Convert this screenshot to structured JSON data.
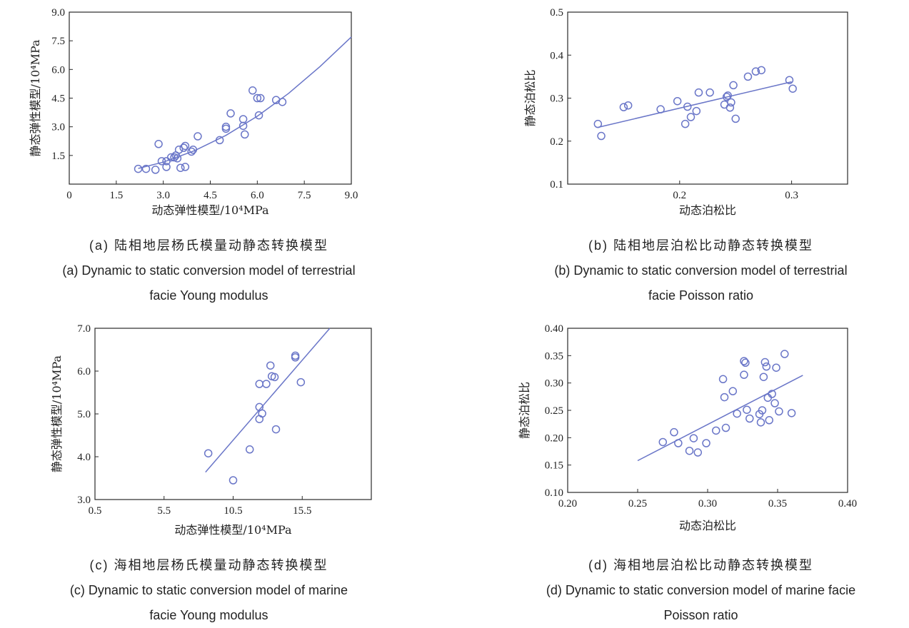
{
  "colors": {
    "marker": "#6a76c8",
    "axis": "#2a2a2a",
    "fit": "#6a76c8"
  },
  "chart_data": [
    {
      "type": "scatter",
      "caption_cn": "(a) 陆相地层杨氏模量动静态转换模型",
      "caption_en": "(a) Dynamic to static conversion model of terrestrial",
      "caption_en2": "facie Young modulus",
      "xlabel": "动态弹性模型/10⁴MPa",
      "ylabel": "静态弹性模型/10⁴MPa",
      "xlim": [
        0,
        9
      ],
      "ylim": [
        0,
        9
      ],
      "xticks": [
        "0",
        "1.5",
        "3.0",
        "4.5",
        "6.0",
        "7.5",
        "9.0"
      ],
      "yticks": [
        "",
        "1.5",
        "3.0",
        "4.5",
        "6.0",
        "7.5",
        "9.0"
      ],
      "points": [
        [
          2.2,
          0.8
        ],
        [
          2.45,
          0.8
        ],
        [
          2.75,
          0.75
        ],
        [
          2.85,
          2.1
        ],
        [
          2.95,
          1.2
        ],
        [
          3.1,
          0.9
        ],
        [
          3.1,
          1.2
        ],
        [
          3.25,
          1.4
        ],
        [
          3.35,
          1.4
        ],
        [
          3.4,
          1.5
        ],
        [
          3.45,
          1.35
        ],
        [
          3.5,
          1.8
        ],
        [
          3.55,
          0.85
        ],
        [
          3.65,
          1.9
        ],
        [
          3.7,
          2.0
        ],
        [
          3.7,
          0.9
        ],
        [
          3.9,
          1.7
        ],
        [
          3.95,
          1.8
        ],
        [
          4.1,
          2.5
        ],
        [
          4.8,
          2.3
        ],
        [
          5.0,
          2.9
        ],
        [
          5.0,
          3.0
        ],
        [
          5.15,
          3.7
        ],
        [
          5.55,
          3.4
        ],
        [
          5.55,
          3.05
        ],
        [
          5.6,
          2.6
        ],
        [
          5.85,
          4.9
        ],
        [
          6.0,
          4.5
        ],
        [
          6.05,
          3.6
        ],
        [
          6.1,
          4.5
        ],
        [
          6.6,
          4.4
        ],
        [
          6.8,
          4.3
        ]
      ],
      "fit": {
        "kind": "curve",
        "x": [
          2.2,
          3,
          4,
          5,
          6,
          7,
          8,
          9
        ],
        "y": [
          0.82,
          1.15,
          1.75,
          2.55,
          3.55,
          4.75,
          6.15,
          7.7
        ]
      }
    },
    {
      "type": "scatter",
      "caption_cn": "(b) 陆相地层泊松比动静态转换模型",
      "caption_en": "(b) Dynamic to static conversion model of terrestrial",
      "caption_en2": "facie Poisson ratio",
      "xlabel": "动态泊松比",
      "ylabel": "静态泊松比",
      "xlim": [
        0.1,
        0.35
      ],
      "ylim": [
        0.1,
        0.5
      ],
      "xticks": [
        "0.2",
        "0.3"
      ],
      "xtick_values": [
        0.2,
        0.3
      ],
      "yticks": [
        "0.1",
        "0.2",
        "0.3",
        "0.4",
        "0.5"
      ],
      "points": [
        [
          0.127,
          0.24
        ],
        [
          0.13,
          0.212
        ],
        [
          0.15,
          0.279
        ],
        [
          0.154,
          0.283
        ],
        [
          0.183,
          0.274
        ],
        [
          0.198,
          0.293
        ],
        [
          0.205,
          0.24
        ],
        [
          0.207,
          0.28
        ],
        [
          0.21,
          0.256
        ],
        [
          0.215,
          0.27
        ],
        [
          0.217,
          0.313
        ],
        [
          0.227,
          0.313
        ],
        [
          0.24,
          0.285
        ],
        [
          0.242,
          0.303
        ],
        [
          0.243,
          0.306
        ],
        [
          0.245,
          0.278
        ],
        [
          0.246,
          0.29
        ],
        [
          0.248,
          0.33
        ],
        [
          0.25,
          0.252
        ],
        [
          0.261,
          0.35
        ],
        [
          0.268,
          0.362
        ],
        [
          0.273,
          0.365
        ],
        [
          0.298,
          0.342
        ],
        [
          0.301,
          0.322
        ]
      ],
      "fit": {
        "kind": "line",
        "x": [
          0.127,
          0.3
        ],
        "y": [
          0.232,
          0.338
        ]
      }
    },
    {
      "type": "scatter",
      "caption_cn": "(c) 海相地层杨氏模量动静态转换模型",
      "caption_en": "(c) Dynamic to static conversion model of marine",
      "caption_en2": "facie Young modulus",
      "xlabel": "动态弹性模型/10⁴MPa",
      "ylabel": "静态弹性模型/10⁴MPa",
      "xlim": [
        0.5,
        20.5
      ],
      "ylim": [
        3.0,
        7.0
      ],
      "xticks": [
        "0.5",
        "5.5",
        "10.5",
        "15.5"
      ],
      "xtick_values": [
        0.5,
        5.5,
        10.5,
        15.5
      ],
      "yticks": [
        "3.0",
        "4.0",
        "5.0",
        "6.0",
        "7.0"
      ],
      "points": [
        [
          8.7,
          4.08
        ],
        [
          10.5,
          3.45
        ],
        [
          11.7,
          4.17
        ],
        [
          12.4,
          5.7
        ],
        [
          12.4,
          5.16
        ],
        [
          12.4,
          4.88
        ],
        [
          12.6,
          5.01
        ],
        [
          12.9,
          5.7
        ],
        [
          13.2,
          6.13
        ],
        [
          13.3,
          5.88
        ],
        [
          13.5,
          5.86
        ],
        [
          13.6,
          4.64
        ],
        [
          15.0,
          6.32
        ],
        [
          15.0,
          6.36
        ],
        [
          15.4,
          5.74
        ]
      ],
      "fit": {
        "kind": "line",
        "x": [
          8.5,
          17.5
        ],
        "y": [
          3.64,
          7.0
        ]
      }
    },
    {
      "type": "scatter",
      "caption_cn": "(d) 海相地层泊松比动静态转换模型",
      "caption_en": "(d) Dynamic to static conversion model of marine facie",
      "caption_en2": "Poisson ratio",
      "xlabel": "动态泊松比",
      "ylabel": "静态泊松比",
      "xlim": [
        0.2,
        0.4
      ],
      "ylim": [
        0.1,
        0.4
      ],
      "xticks": [
        "0.20",
        "0.25",
        "0.30",
        "0.35",
        "0.40"
      ],
      "yticks": [
        "0.10",
        "0.15",
        "0.20",
        "0.25",
        "0.30",
        "0.35",
        "0.40"
      ],
      "points": [
        [
          0.268,
          0.192
        ],
        [
          0.276,
          0.21
        ],
        [
          0.279,
          0.19
        ],
        [
          0.287,
          0.176
        ],
        [
          0.29,
          0.199
        ],
        [
          0.293,
          0.173
        ],
        [
          0.299,
          0.19
        ],
        [
          0.306,
          0.213
        ],
        [
          0.311,
          0.307
        ],
        [
          0.312,
          0.274
        ],
        [
          0.313,
          0.218
        ],
        [
          0.318,
          0.285
        ],
        [
          0.321,
          0.244
        ],
        [
          0.326,
          0.315
        ],
        [
          0.326,
          0.34
        ],
        [
          0.327,
          0.337
        ],
        [
          0.328,
          0.251
        ],
        [
          0.33,
          0.235
        ],
        [
          0.337,
          0.243
        ],
        [
          0.338,
          0.228
        ],
        [
          0.339,
          0.25
        ],
        [
          0.34,
          0.311
        ],
        [
          0.341,
          0.338
        ],
        [
          0.342,
          0.33
        ],
        [
          0.343,
          0.273
        ],
        [
          0.344,
          0.232
        ],
        [
          0.346,
          0.28
        ],
        [
          0.348,
          0.263
        ],
        [
          0.349,
          0.328
        ],
        [
          0.351,
          0.248
        ],
        [
          0.355,
          0.353
        ],
        [
          0.36,
          0.245
        ]
      ],
      "fit": {
        "kind": "line",
        "x": [
          0.25,
          0.368
        ],
        "y": [
          0.158,
          0.314
        ]
      }
    }
  ]
}
